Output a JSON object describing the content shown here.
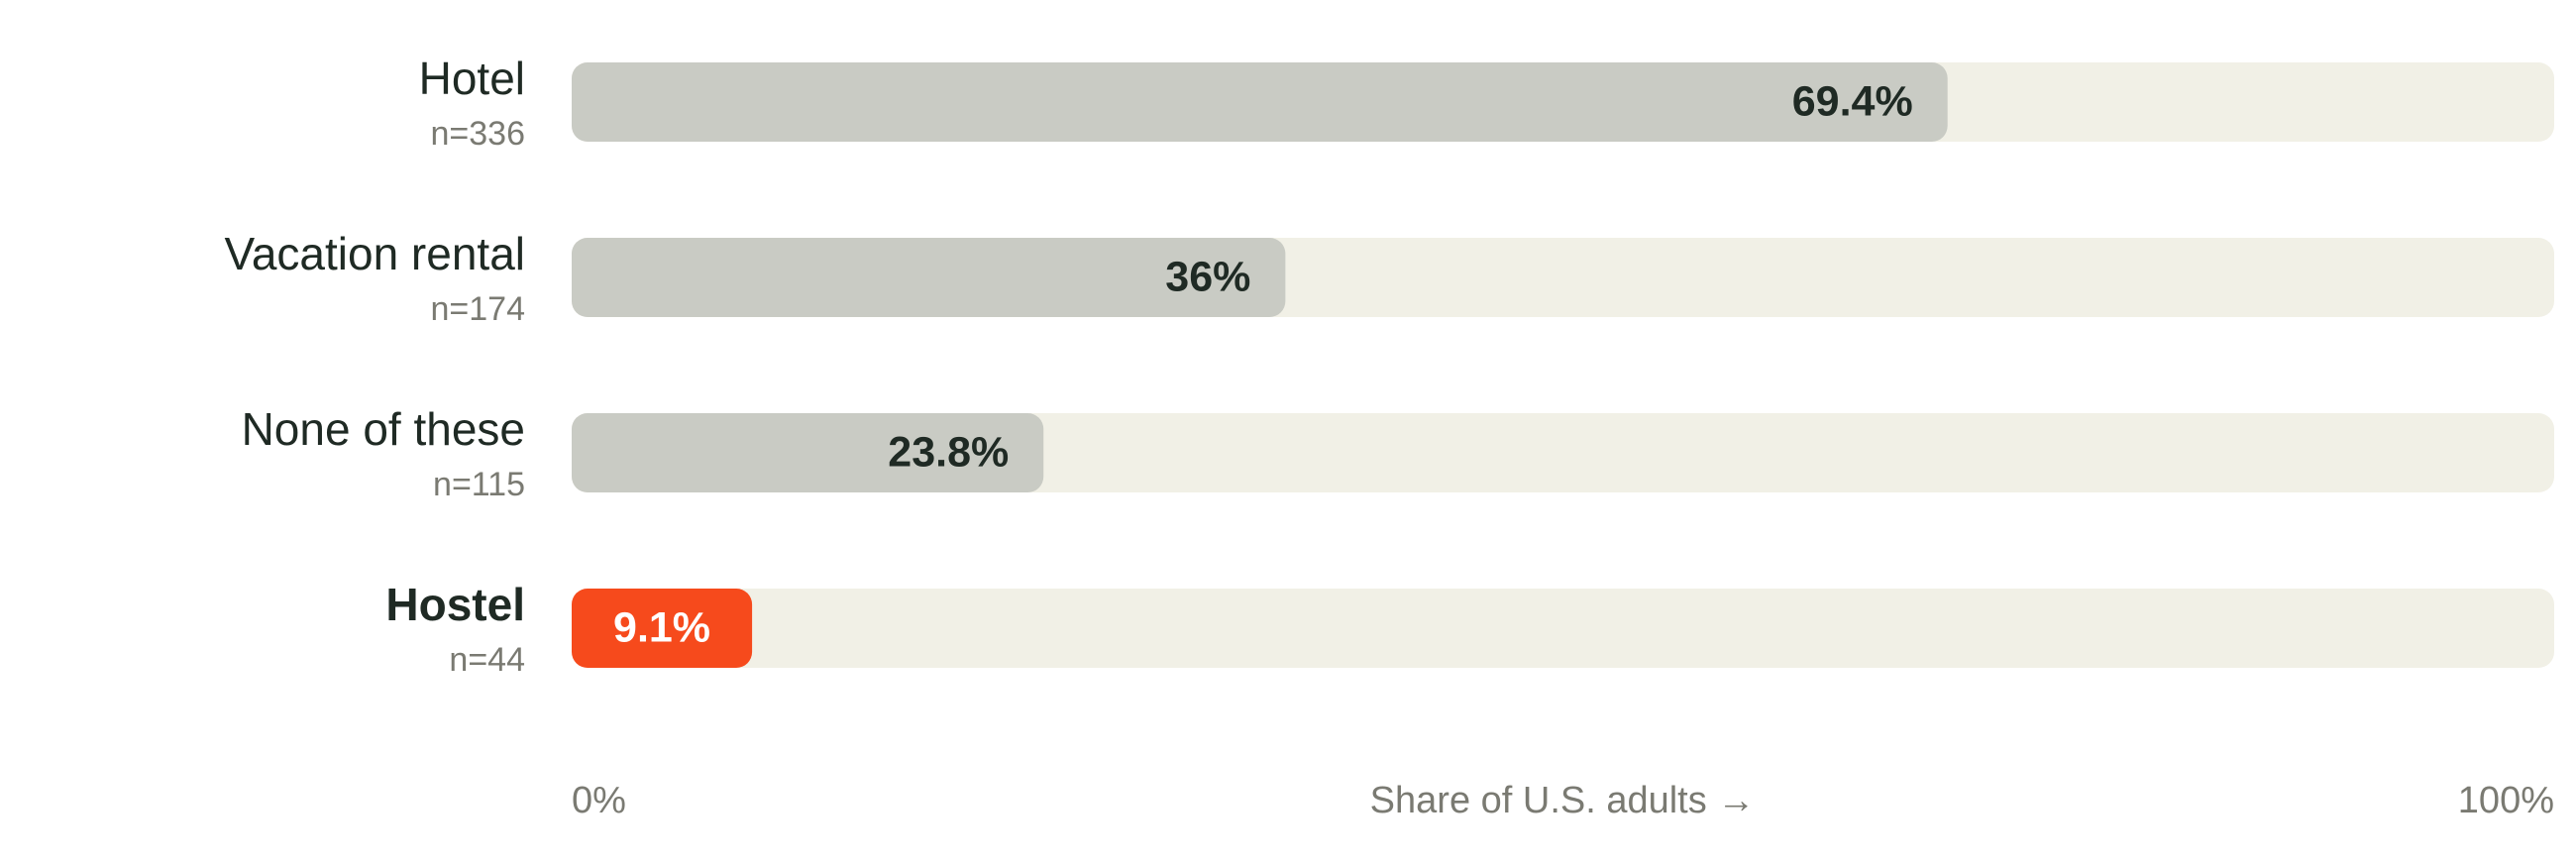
{
  "chart_data": {
    "type": "hbar",
    "categories": [
      "Hotel",
      "Vacation rental",
      "None of these",
      "Hostel"
    ],
    "sample_sizes": [
      "n=336",
      "n=174",
      "n=115",
      "n=44"
    ],
    "values": [
      69.4,
      36,
      23.8,
      9.1
    ],
    "value_labels": [
      "69.4%",
      "36%",
      "23.8%",
      "9.1%"
    ],
    "colors": [
      "#c9cbc4",
      "#c9cbc4",
      "#c9cbc4",
      "#f64a1c"
    ],
    "track_color": "#f1f0e6",
    "xlim": [
      0,
      100
    ],
    "xticks": [
      {
        "value": 0,
        "label": "0%"
      },
      {
        "value": 100,
        "label": "100%"
      }
    ],
    "xlabel": "Share of U.S. adults →"
  }
}
